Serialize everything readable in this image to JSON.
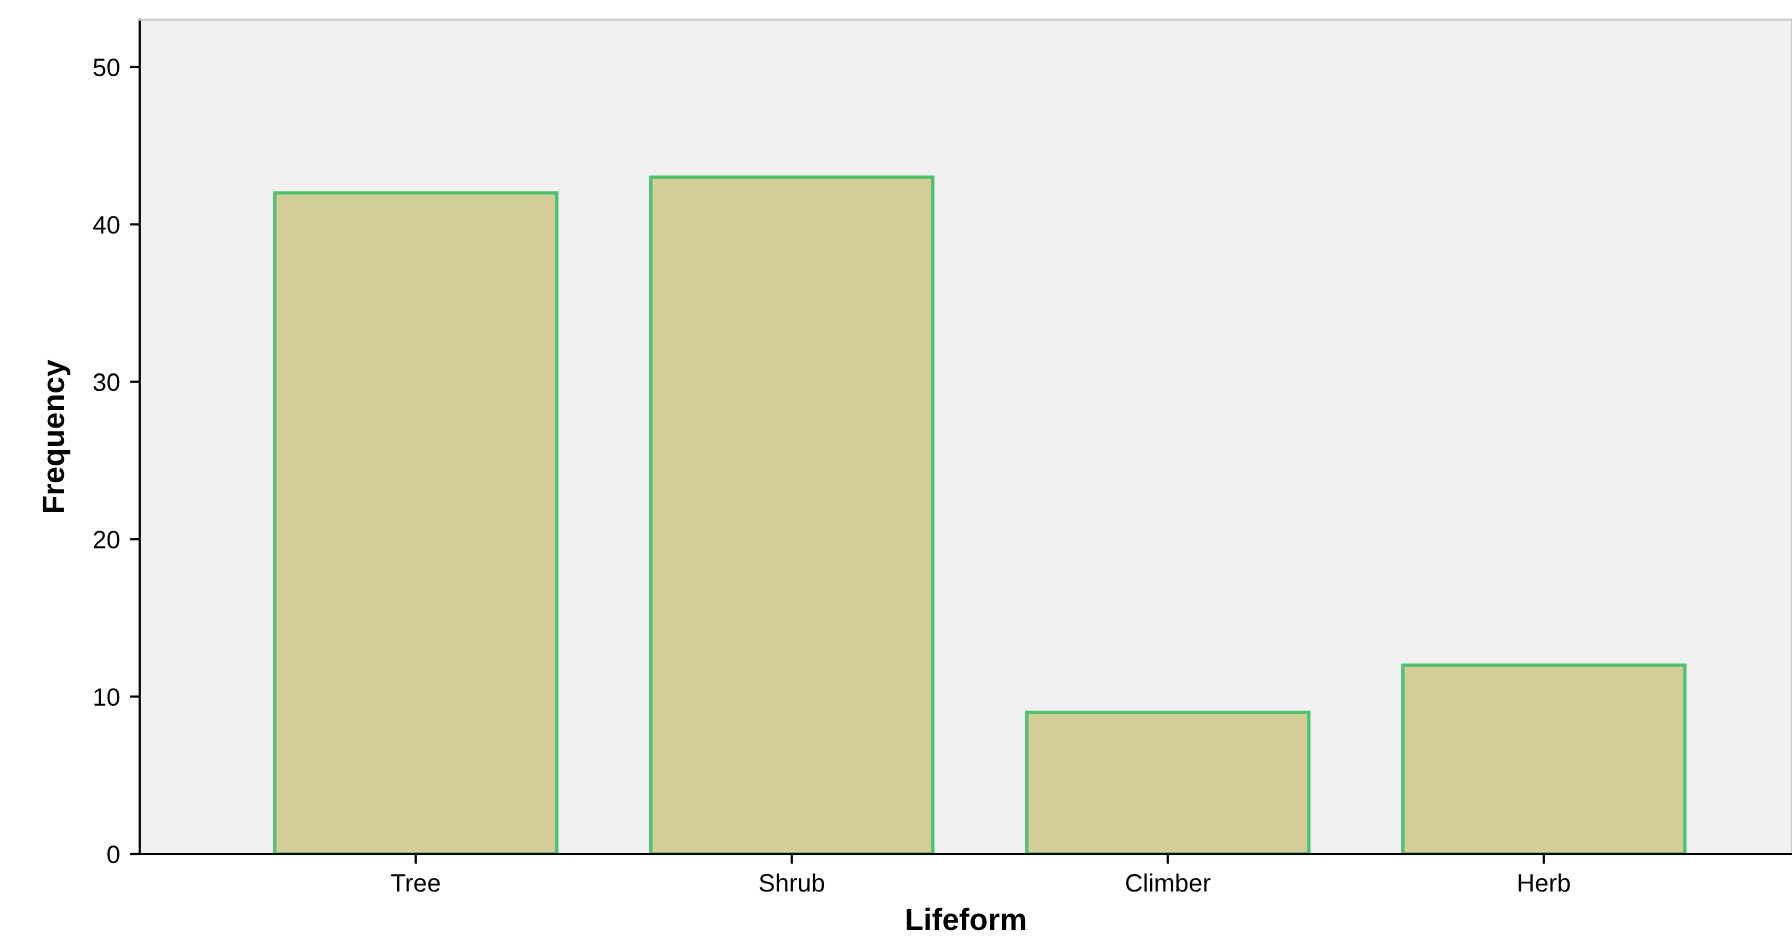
{
  "chart_data": {
    "type": "bar",
    "xlabel": "Lifeform",
    "ylabel": "Frequency",
    "categories": [
      "Tree",
      "Shrub",
      "Climber",
      "Herb"
    ],
    "values": [
      42,
      43,
      9,
      12
    ],
    "color": "#d3ce97",
    "ylim": [
      0,
      53
    ],
    "yticks": [
      0,
      10,
      20,
      30,
      40,
      50
    ],
    "grid": false
  }
}
